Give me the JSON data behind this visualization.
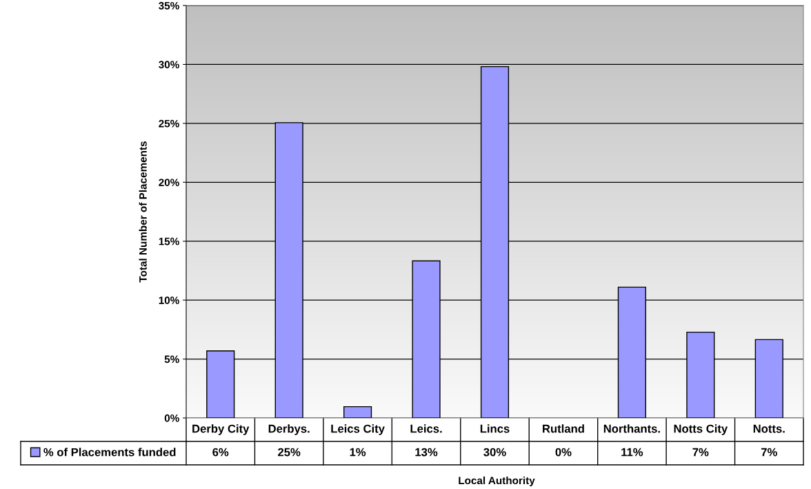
{
  "chart_data": {
    "type": "bar",
    "xlabel": "Local Authority",
    "ylabel": "Total Number of Placements",
    "categories": [
      "Derby City",
      "Derbys.",
      "Leics City",
      "Leics.",
      "Lincs",
      "Rutland",
      "Northants.",
      "Notts City",
      "Notts."
    ],
    "series": [
      {
        "name": "% of Placements funded",
        "color": "#9999ff",
        "values": [
          5.69,
          25.06,
          0.96,
          13.33,
          29.81,
          0,
          11.1,
          7.28,
          6.65
        ],
        "value_labels": [
          "6%",
          "25%",
          "1%",
          "13%",
          "30%",
          "0%",
          "11%",
          "7%",
          "7%"
        ]
      }
    ],
    "ylim": [
      0,
      35
    ],
    "yticks": [
      {
        "value": 0,
        "label": "0%"
      },
      {
        "value": 5,
        "label": "5%"
      },
      {
        "value": 10,
        "label": "10%"
      },
      {
        "value": 15,
        "label": "15%"
      },
      {
        "value": 20,
        "label": "20%"
      },
      {
        "value": 25,
        "label": "25%"
      },
      {
        "value": 30,
        "label": "30%"
      },
      {
        "value": 35,
        "label": "35%"
      }
    ],
    "grid": "y",
    "legend": "bottom"
  }
}
